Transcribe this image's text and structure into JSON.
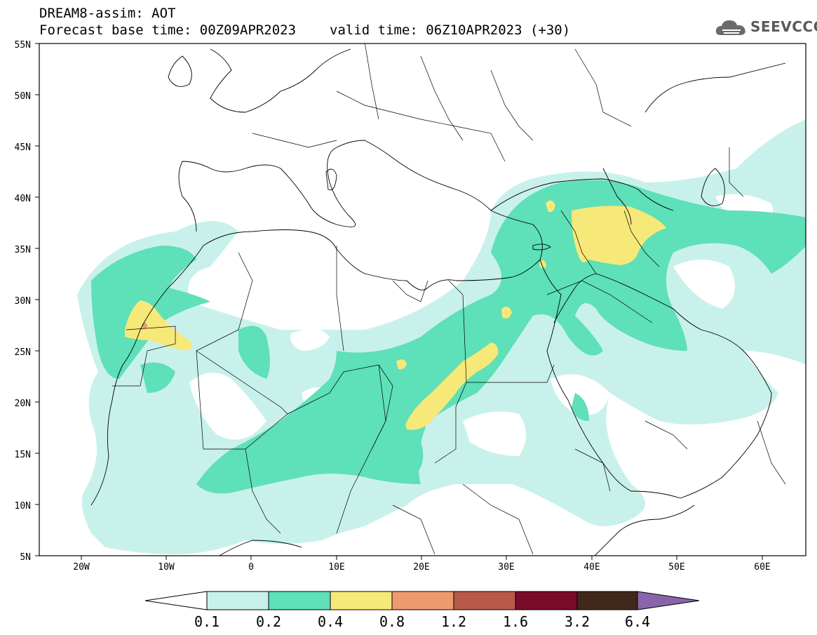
{
  "header": {
    "title": "DREAM8-assim: AOT",
    "base_time": "Forecast base time: 00Z09APR2023",
    "valid_time": "valid time: 06Z10APR2023 (+30)"
  },
  "logo": {
    "text": "SEEVCCC",
    "icon": "cloud-icon"
  },
  "map": {
    "lat_labels": [
      "55N",
      "50N",
      "45N",
      "40N",
      "35N",
      "30N",
      "25N",
      "20N",
      "15N",
      "10N",
      "5N"
    ],
    "lon_labels": [
      "20W",
      "10W",
      "0",
      "10E",
      "20E",
      "30E",
      "40E",
      "50E",
      "60E"
    ]
  },
  "colorbar": {
    "labels": [
      "0.1",
      "0.2",
      "0.4",
      "0.8",
      "1.2",
      "1.6",
      "3.2",
      "6.4"
    ],
    "colors": [
      "#c9f1ec",
      "#5ee0b8",
      "#f7e87a",
      "#ee9a6e",
      "#b8594a",
      "#7a0a2a",
      "#40281a",
      "#8a64aa"
    ]
  }
}
